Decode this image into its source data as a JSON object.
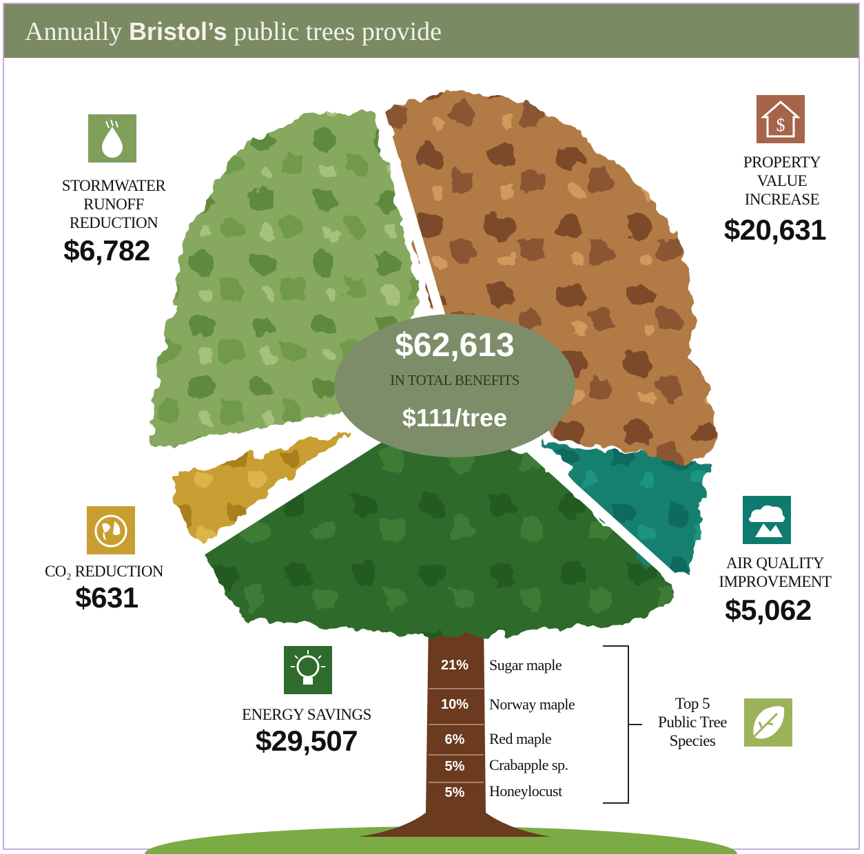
{
  "title": {
    "prefix": "Annually ",
    "city": "Bristol’s",
    "suffix": " public trees provide"
  },
  "colors": {
    "title_bar": "#7a8a62",
    "stormwater": "#7f9f5a",
    "property": "#a9703e",
    "air_quality": "#0f7a6e",
    "energy": "#2f6b2c",
    "co2": "#c79a2c",
    "center_oval": "#7d8d6a",
    "trunk": "#6b3a1f",
    "species_icon": "#9db35a"
  },
  "center": {
    "total": "$62,613",
    "total_label": "IN TOTAL BENEFITS",
    "per_tree": "$111/tree"
  },
  "benefits": {
    "stormwater": {
      "label_lines": [
        "STORMWATER",
        "RUNOFF",
        "REDUCTION"
      ],
      "amount": "$6,782",
      "icon": "water-drop-icon"
    },
    "property": {
      "label_lines": [
        "PROPERTY",
        "VALUE",
        "INCREASE"
      ],
      "amount": "$20,631",
      "icon": "house-dollar-icon"
    },
    "co2": {
      "label": "CO₂ REDUCTION",
      "amount": "$631",
      "icon": "globe-icon"
    },
    "air_quality": {
      "label_lines": [
        "AIR QUALITY",
        "IMPROVEMENT"
      ],
      "amount": "$5,062",
      "icon": "cloud-factory-icon"
    },
    "energy": {
      "label": "ENERGY SAVINGS",
      "amount": "$29,507",
      "icon": "light-bulb-icon"
    }
  },
  "species_title_lines": [
    "Top 5",
    "Public Tree",
    "Species"
  ],
  "species": [
    {
      "pct": "21%",
      "name": "Sugar maple"
    },
    {
      "pct": "10%",
      "name": "Norway maple"
    },
    {
      "pct": "6%",
      "name": "Red maple"
    },
    {
      "pct": "5%",
      "name": "Crabapple sp."
    },
    {
      "pct": "5%",
      "name": "Honeylocust"
    }
  ],
  "chart_data": {
    "type": "pie",
    "title": "Annually Bristol’s public trees provide",
    "categories": [
      "Stormwater Runoff Reduction",
      "Property Value Increase",
      "Air Quality Improvement",
      "Energy Savings",
      "CO₂ Reduction"
    ],
    "values": [
      6782,
      20631,
      5062,
      29507,
      631
    ],
    "total": 62613,
    "per_tree": 111
  }
}
